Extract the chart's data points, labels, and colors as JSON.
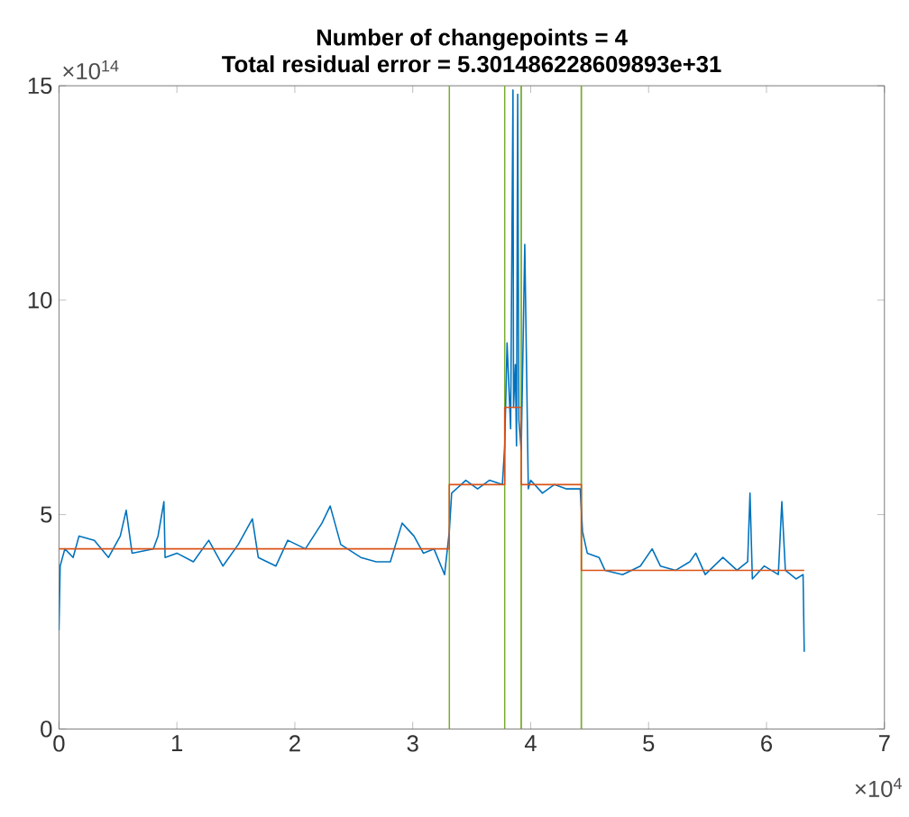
{
  "chart_data": {
    "type": "line",
    "title": "Number of changepoints = 4",
    "subtitle": "Total residual error = 5.301486228609893e+31",
    "xlim": [
      0,
      7
    ],
    "xticks": [
      0,
      1,
      2,
      3,
      4,
      5,
      6,
      7
    ],
    "ylim": [
      0,
      15
    ],
    "yticks": [
      0,
      5,
      10,
      15
    ],
    "annotations": [
      "×10$^{14}$",
      "×10$^{4}$"
    ],
    "series": [
      {
        "color": "#0072bd",
        "x": [
          0,
          0.01,
          0.05,
          0.12,
          0.17,
          0.3,
          0.42,
          0.52,
          0.57,
          0.62,
          0.8,
          0.84,
          0.89,
          0.9,
          1.0,
          1.14,
          1.27,
          1.39,
          1.52,
          1.64,
          1.69,
          1.84,
          1.94,
          2.09,
          2.23,
          2.3,
          2.39,
          2.56,
          2.69,
          2.81,
          2.91,
          3.01,
          3.09,
          3.18,
          3.27,
          3.31,
          3.33,
          3.45,
          3.55,
          3.65,
          3.76,
          3.78,
          3.8,
          3.83,
          3.85,
          3.855,
          3.87,
          3.88,
          3.89,
          3.9,
          3.92,
          3.95,
          3.98,
          4.0,
          4.1,
          4.2,
          4.3,
          4.42,
          4.44,
          4.48,
          4.58,
          4.63,
          4.78,
          4.93,
          5.03,
          5.1,
          5.23,
          5.35,
          5.4,
          5.48,
          5.63,
          5.75,
          5.84,
          5.86,
          5.88,
          5.98,
          6.1,
          6.13,
          6.16,
          6.25,
          6.31,
          6.32
        ],
        "values": [
          2.3,
          3.8,
          4.2,
          4.0,
          4.5,
          4.4,
          4.0,
          4.5,
          5.1,
          4.1,
          4.2,
          4.5,
          5.3,
          4.0,
          4.1,
          3.9,
          4.4,
          3.8,
          4.3,
          4.9,
          4.0,
          3.8,
          4.4,
          4.2,
          4.8,
          5.2,
          4.3,
          4.0,
          3.9,
          3.9,
          4.8,
          4.5,
          4.1,
          4.2,
          3.6,
          4.6,
          5.5,
          5.8,
          5.6,
          5.8,
          5.7,
          6.6,
          9.0,
          7.0,
          14.9,
          7.5,
          8.5,
          6.6,
          14.8,
          7.2,
          6.5,
          11.3,
          5.6,
          5.8,
          5.5,
          5.7,
          5.6,
          5.6,
          4.6,
          4.1,
          4.0,
          3.7,
          3.6,
          3.8,
          4.2,
          3.8,
          3.7,
          3.9,
          4.1,
          3.6,
          4.0,
          3.7,
          3.9,
          5.5,
          3.5,
          3.8,
          3.6,
          5.3,
          3.7,
          3.5,
          3.6,
          1.8
        ]
      },
      {
        "color": "#d95319",
        "x": [
          0,
          3.31,
          3.31,
          3.78,
          3.78,
          3.92,
          3.92,
          4.43,
          4.43,
          6.32
        ],
        "values": [
          4.2,
          4.2,
          5.7,
          5.7,
          7.5,
          7.5,
          5.7,
          5.7,
          3.7,
          3.7
        ]
      }
    ],
    "ref_lines": [
      {
        "axis": "x",
        "value": 3.31,
        "color": "#77ac30"
      },
      {
        "axis": "x",
        "value": 3.78,
        "color": "#77ac30"
      },
      {
        "axis": "x",
        "value": 3.92,
        "color": "#77ac30"
      },
      {
        "axis": "x",
        "value": 4.43,
        "color": "#77ac30"
      }
    ]
  }
}
